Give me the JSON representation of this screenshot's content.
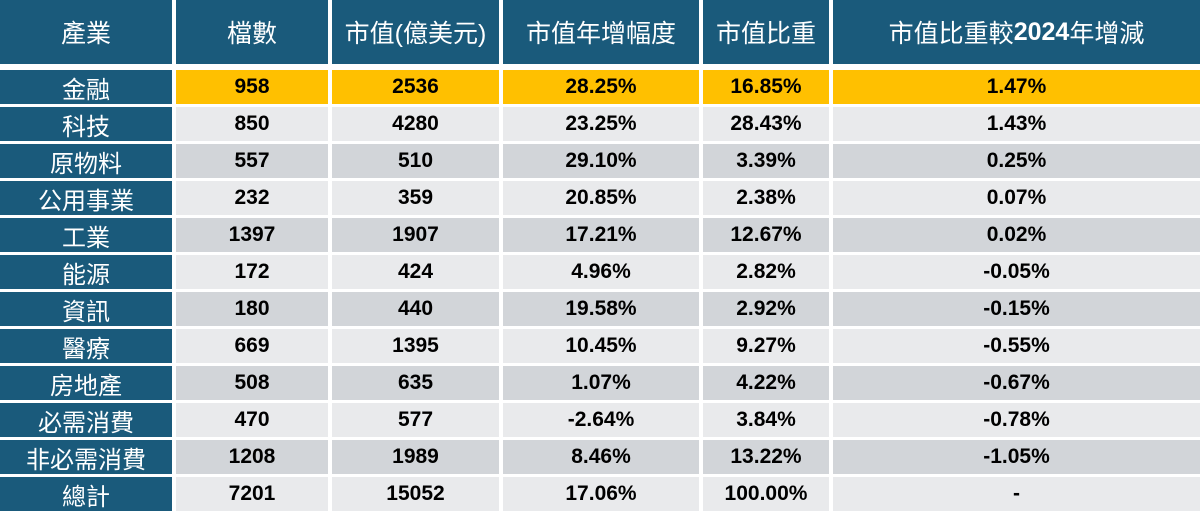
{
  "colors": {
    "header_bg": "#1a5a7b",
    "industry_col_bg": "#1a5a7b",
    "highlight_row_bg": "#ffc000",
    "row_light_bg": "#e9eaec",
    "row_dark_bg": "#d2d5d9",
    "header_text": "#ffffff",
    "body_text": "#000000",
    "gap_color": "#ffffff"
  },
  "chart_data": {
    "type": "table",
    "title": "",
    "columns": [
      "產業",
      "檔數",
      "市值(億美元)",
      "市值年增幅度",
      "市值比重",
      "市值比重較2024年增減"
    ],
    "col6_parts": [
      "市值比重較",
      "2024",
      "年增減"
    ],
    "rows": [
      {
        "industry": "金融",
        "count": "958",
        "market_cap": "2536",
        "growth": "28.25%",
        "weight": "16.85%",
        "change": "1.47%",
        "shade": "highlight"
      },
      {
        "industry": "科技",
        "count": "850",
        "market_cap": "4280",
        "growth": "23.25%",
        "weight": "28.43%",
        "change": "1.43%",
        "shade": "light"
      },
      {
        "industry": "原物料",
        "count": "557",
        "market_cap": "510",
        "growth": "29.10%",
        "weight": "3.39%",
        "change": "0.25%",
        "shade": "dark"
      },
      {
        "industry": "公用事業",
        "count": "232",
        "market_cap": "359",
        "growth": "20.85%",
        "weight": "2.38%",
        "change": "0.07%",
        "shade": "light"
      },
      {
        "industry": "工業",
        "count": "1397",
        "market_cap": "1907",
        "growth": "17.21%",
        "weight": "12.67%",
        "change": "0.02%",
        "shade": "dark"
      },
      {
        "industry": "能源",
        "count": "172",
        "market_cap": "424",
        "growth": "4.96%",
        "weight": "2.82%",
        "change": "-0.05%",
        "shade": "light"
      },
      {
        "industry": "資訊",
        "count": "180",
        "market_cap": "440",
        "growth": "19.58%",
        "weight": "2.92%",
        "change": "-0.15%",
        "shade": "dark"
      },
      {
        "industry": "醫療",
        "count": "669",
        "market_cap": "1395",
        "growth": "10.45%",
        "weight": "9.27%",
        "change": "-0.55%",
        "shade": "light"
      },
      {
        "industry": "房地產",
        "count": "508",
        "market_cap": "635",
        "growth": "1.07%",
        "weight": "4.22%",
        "change": "-0.67%",
        "shade": "dark"
      },
      {
        "industry": "必需消費",
        "count": "470",
        "market_cap": "577",
        "growth": "-2.64%",
        "weight": "3.84%",
        "change": "-0.78%",
        "shade": "light"
      },
      {
        "industry": "非必需消費",
        "count": "1208",
        "market_cap": "1989",
        "growth": "8.46%",
        "weight": "13.22%",
        "change": "-1.05%",
        "shade": "dark"
      },
      {
        "industry": "總計",
        "count": "7201",
        "market_cap": "15052",
        "growth": "17.06%",
        "weight": "100.00%",
        "change": "-",
        "shade": "light"
      }
    ]
  }
}
